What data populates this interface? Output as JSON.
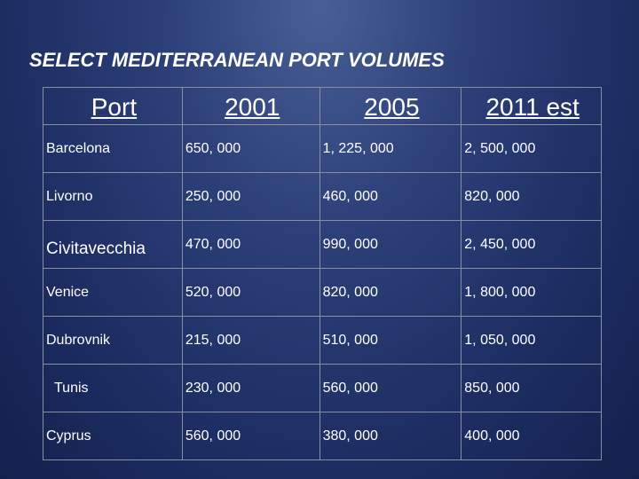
{
  "header": {
    "title": "SELECT MEDITERRANEAN PORT VOLUMES"
  },
  "table": {
    "columns": [
      "Port",
      "2001",
      "2005",
      "2011 est"
    ],
    "rows": [
      [
        "Barcelona",
        "650, 000",
        "1, 225, 000",
        "2, 500, 000"
      ],
      [
        "Livorno",
        "250, 000",
        "460, 000",
        "820, 000"
      ],
      [
        "Civitavecchia",
        "470, 000",
        "990, 000",
        "2, 450, 000"
      ],
      [
        "Venice",
        "520, 000",
        "820, 000",
        "1, 800, 000"
      ],
      [
        "Dubrovnik",
        "215, 000",
        "510, 000",
        "1, 050, 000"
      ],
      [
        "Tunis",
        "230, 000",
        "560, 000",
        "850, 000"
      ],
      [
        "Cyprus",
        "560, 000",
        "380, 000",
        "400, 000"
      ]
    ]
  }
}
